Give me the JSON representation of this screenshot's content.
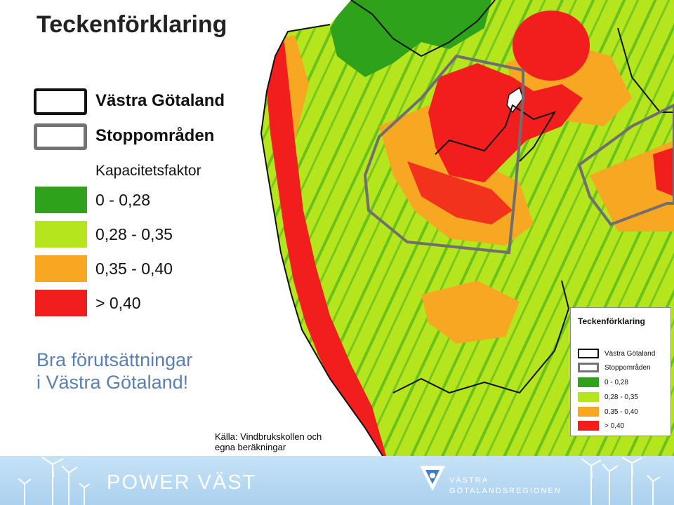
{
  "left_legend": {
    "title": "Teckenförklaring",
    "boundary_items": [
      {
        "label": "Västra Götaland",
        "stroke": "#111111"
      },
      {
        "label": "Stoppområden",
        "stroke": "#737373"
      }
    ],
    "capacity_title": "Kapacitetsfaktor",
    "classes": [
      {
        "range": "0 - 0,28",
        "color": "#2ea21a"
      },
      {
        "range": "0,28 - 0,35",
        "color": "#b5e61d"
      },
      {
        "range": "0,35 - 0,40",
        "color": "#f7a722"
      },
      {
        "range": "> 0,40",
        "color": "#f21d1d"
      }
    ]
  },
  "headline": [
    "Bra förutsättningar",
    "i Västra Götaland!"
  ],
  "source": [
    "Källa: Vindbrukskollen och",
    "egna beräkningar"
  ],
  "map_inset_legend": {
    "title": "Teckenförklaring",
    "items": [
      {
        "label": "Västra Götaland",
        "kind": "outline",
        "color": "#111111"
      },
      {
        "label": "Stoppområden",
        "kind": "outline",
        "color": "#737373"
      },
      {
        "label": "0 - 0,28",
        "kind": "fill",
        "color": "#2ea21a"
      },
      {
        "label": "0,28 - 0,35",
        "kind": "fill",
        "color": "#b5e61d"
      },
      {
        "label": "0,35 - 0,40",
        "kind": "fill",
        "color": "#f7a722"
      },
      {
        "label": "> 0,40",
        "kind": "fill",
        "color": "#f21d1d"
      }
    ]
  },
  "footer": {
    "brand": "POWER VÄST",
    "region_lines": [
      "VÄSTRA",
      "GÖTALANDSREGIONEN"
    ]
  }
}
